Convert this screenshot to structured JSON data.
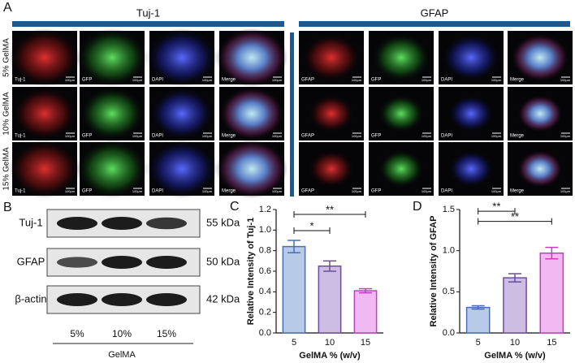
{
  "panel_a": {
    "label": "A",
    "groups": [
      {
        "title": "Tuj-1",
        "channels": [
          "Tuj-1",
          "GFP",
          "DAPI",
          "Merge"
        ]
      },
      {
        "title": "GFAP",
        "channels": [
          "GFAP",
          "GFP",
          "DAPI",
          "Merge"
        ]
      }
    ],
    "rows": [
      "5% GelMA",
      "10% GelMA",
      "15% GelMA"
    ],
    "scale_bar": "100μm"
  },
  "panel_b": {
    "label": "B",
    "proteins": [
      "Tuj-1",
      "GFAP",
      "β-actin"
    ],
    "weights": [
      "55 kDa",
      "50 kDa",
      "42 kDa"
    ],
    "lanes": [
      "5%",
      "10%",
      "15%"
    ],
    "group_label": "GelMA"
  },
  "chart_data": [
    {
      "type": "bar",
      "panel_label": "C",
      "ylabel": "Relative Intensity of Tuj-1",
      "xlabel": "GelMA % (w/v)",
      "categories": [
        "5",
        "10",
        "15"
      ],
      "values": [
        0.84,
        0.65,
        0.41
      ],
      "errors": [
        0.06,
        0.05,
        0.02
      ],
      "colors": [
        "#b7cbe9",
        "#cdbde3",
        "#f1b9f1"
      ],
      "edge_colors": [
        "#4b6fb3",
        "#6a4d9e",
        "#bf3fc0"
      ],
      "ylim": [
        0,
        1.2
      ],
      "yticks": [
        {
          "value": 0,
          "label": "0.0"
        },
        0.2,
        0.4,
        0.6,
        0.8,
        {
          "value": 1,
          "label": "1.0"
        },
        1.2
      ],
      "significance": [
        {
          "from": 0,
          "to": 1,
          "label": "*"
        },
        {
          "from": 0,
          "to": 2,
          "label": "**"
        }
      ]
    },
    {
      "type": "bar",
      "panel_label": "D",
      "ylabel": "Relative Intensity of GFAP",
      "xlabel": "GelMA % (w/v)",
      "categories": [
        "5",
        "10",
        "15"
      ],
      "values": [
        0.31,
        0.67,
        0.97
      ],
      "errors": [
        0.02,
        0.05,
        0.07
      ],
      "colors": [
        "#b7cbe9",
        "#cdbde3",
        "#f1b9f1"
      ],
      "edge_colors": [
        "#4b6fb3",
        "#6a4d9e",
        "#bf3fc0"
      ],
      "ylim": [
        0,
        1.5
      ],
      "yticks": [
        {
          "value": 0,
          "label": "0.0"
        },
        {
          "value": 0.5,
          "label": "0.5"
        },
        {
          "value": 1,
          "label": "1.0"
        },
        {
          "value": 1.5,
          "label": "1.5"
        }
      ],
      "significance": [
        {
          "from": 0,
          "to": 1,
          "label": "**"
        },
        {
          "from": 0,
          "to": 2,
          "label": "**"
        }
      ]
    }
  ]
}
